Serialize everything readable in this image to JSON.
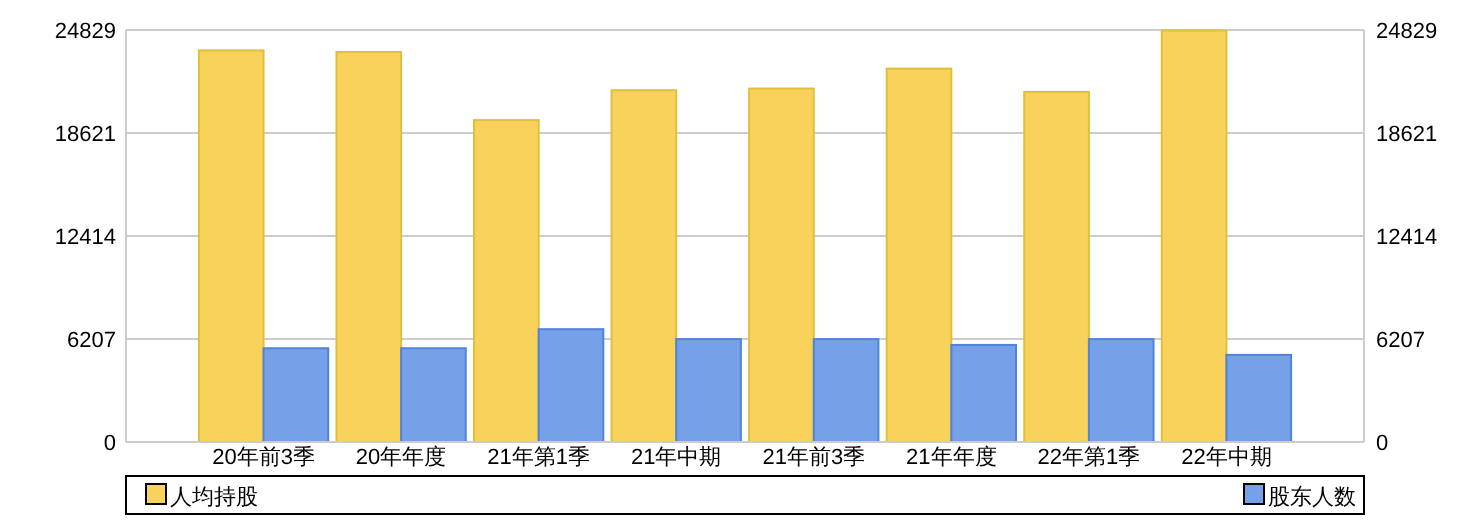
{
  "chart_data": {
    "type": "bar",
    "categories": [
      "20年前3季",
      "20年年度",
      "21年第1季",
      "21年中期",
      "21年前3季",
      "21年年度",
      "22年第1季",
      "22年中期"
    ],
    "series": [
      {
        "name": "人均持股",
        "color": "#f8d25a",
        "values": [
          23600,
          23500,
          19400,
          21200,
          21300,
          22500,
          21100,
          24800
        ]
      },
      {
        "name": "股东人数",
        "color": "#76a0e8",
        "values": [
          5650,
          5650,
          6800,
          6200,
          6200,
          5850,
          6200,
          5250
        ]
      }
    ],
    "ylim": [
      0,
      24829
    ],
    "yticks": [
      0,
      6207,
      12414,
      18621,
      24829
    ],
    "y2lim": [
      0,
      24829
    ],
    "y2ticks": [
      0,
      6207,
      12414,
      18621,
      24829
    ],
    "grid": "y",
    "legend": "bottom"
  }
}
